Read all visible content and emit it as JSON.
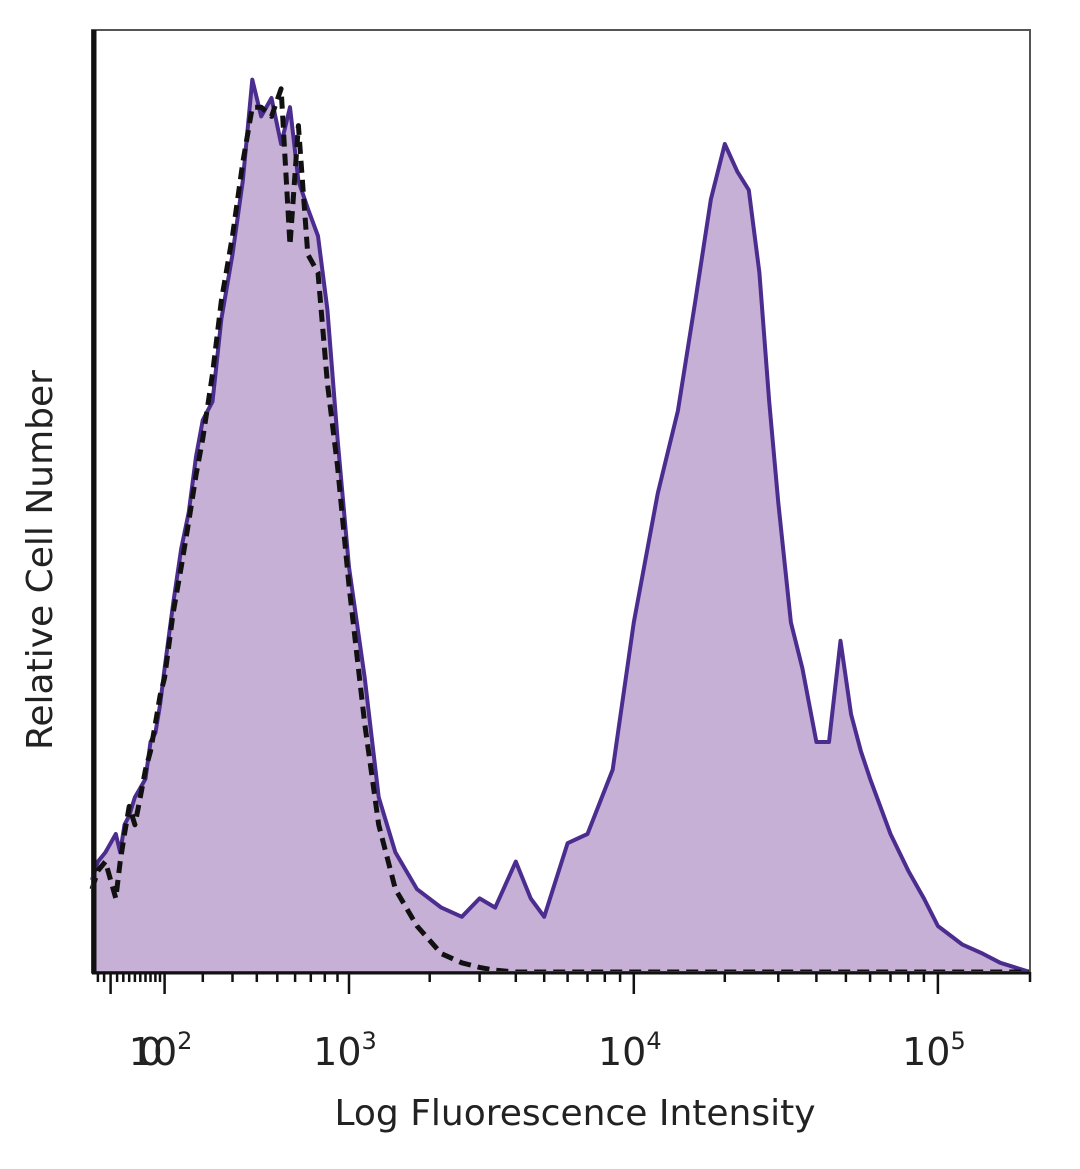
{
  "chart_data": {
    "type": "area",
    "title": "",
    "xlabel": "Log Fluorescence Intensity",
    "ylabel": "Relative Cell Number",
    "x_scale": "biexponential",
    "xlim": [
      -30,
      200000
    ],
    "ylim": [
      0,
      1.0
    ],
    "grid": false,
    "legend": "none",
    "x_ticks": [
      {
        "value": 0,
        "base": "0",
        "exp": ""
      },
      {
        "value": 100,
        "base": "10",
        "exp": "2"
      },
      {
        "value": 1000,
        "base": "10",
        "exp": "3"
      },
      {
        "value": 10000,
        "base": "10",
        "exp": "4"
      },
      {
        "value": 100000,
        "base": "10",
        "exp": "5"
      }
    ],
    "series": [
      {
        "style": "filled-solid",
        "line_color": "#4b2d8f",
        "fill_color": "#c6b0d6",
        "x": [
          -30,
          -20,
          -8,
          0,
          8,
          15,
          22,
          30,
          40,
          50,
          60,
          70,
          80,
          90,
          100,
          120,
          140,
          160,
          180,
          200,
          230,
          260,
          300,
          340,
          380,
          420,
          470,
          520,
          570,
          620,
          680,
          750,
          820,
          900,
          1000,
          1150,
          1300,
          1500,
          1800,
          2200,
          2600,
          3000,
          3400,
          4000,
          4500,
          5000,
          6000,
          7000,
          8500,
          10000,
          12000,
          14000,
          16000,
          18000,
          20000,
          22000,
          24000,
          26000,
          28000,
          30000,
          33000,
          36000,
          40000,
          44000,
          48000,
          52000,
          56000,
          60000,
          70000,
          80000,
          90000,
          100000,
          120000,
          140000,
          160000,
          200000
        ],
        "y": [
          0.1,
          0.12,
          0.13,
          0.14,
          0.15,
          0.13,
          0.16,
          0.17,
          0.19,
          0.2,
          0.21,
          0.25,
          0.26,
          0.29,
          0.33,
          0.4,
          0.46,
          0.5,
          0.56,
          0.6,
          0.62,
          0.71,
          0.78,
          0.86,
          0.97,
          0.93,
          0.95,
          0.9,
          0.94,
          0.86,
          0.83,
          0.8,
          0.72,
          0.58,
          0.44,
          0.32,
          0.19,
          0.13,
          0.09,
          0.07,
          0.06,
          0.08,
          0.07,
          0.12,
          0.08,
          0.06,
          0.14,
          0.15,
          0.22,
          0.38,
          0.52,
          0.61,
          0.73,
          0.84,
          0.9,
          0.87,
          0.85,
          0.76,
          0.62,
          0.51,
          0.38,
          0.33,
          0.25,
          0.25,
          0.36,
          0.28,
          0.24,
          0.21,
          0.15,
          0.11,
          0.08,
          0.05,
          0.03,
          0.02,
          0.01,
          0.0
        ]
      },
      {
        "style": "dashed",
        "line_color": "#111111",
        "x": [
          -30,
          -20,
          -8,
          0,
          8,
          15,
          22,
          30,
          40,
          50,
          60,
          70,
          80,
          90,
          100,
          120,
          140,
          160,
          180,
          200,
          230,
          260,
          300,
          340,
          380,
          420,
          470,
          520,
          570,
          620,
          680,
          750,
          820,
          900,
          1000,
          1150,
          1300,
          1500,
          1800,
          2200,
          2600,
          3000,
          3400,
          4000,
          4500,
          5000,
          6000,
          7000,
          8500,
          10000,
          12000,
          14000,
          16000,
          18000,
          20000,
          22000,
          24000,
          26000,
          28000,
          30000,
          33000,
          36000,
          40000,
          44000,
          48000,
          52000,
          56000,
          60000,
          70000,
          80000,
          90000,
          100000,
          120000,
          140000,
          160000,
          200000
        ],
        "y": [
          0.09,
          0.11,
          0.12,
          0.1,
          0.08,
          0.12,
          0.15,
          0.18,
          0.16,
          0.19,
          0.22,
          0.24,
          0.27,
          0.3,
          0.32,
          0.39,
          0.44,
          0.49,
          0.54,
          0.58,
          0.65,
          0.73,
          0.8,
          0.88,
          0.94,
          0.94,
          0.93,
          0.96,
          0.79,
          0.92,
          0.78,
          0.76,
          0.64,
          0.55,
          0.42,
          0.27,
          0.16,
          0.09,
          0.05,
          0.02,
          0.01,
          0.005,
          0.002,
          0.0,
          0.0,
          0.0,
          0.0,
          0.0,
          0.0,
          0.0,
          0.0,
          0.0,
          0.0,
          0.0,
          0.0,
          0.0,
          0.0,
          0.0,
          0.0,
          0.0,
          0.0,
          0.0,
          0.0,
          0.0,
          0.0,
          0.0,
          0.0,
          0.0,
          0.0,
          0.0,
          0.0,
          0.0,
          0.0,
          0.0,
          0.0,
          0.0
        ]
      }
    ]
  }
}
